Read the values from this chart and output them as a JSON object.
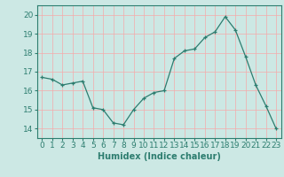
{
  "x": [
    0,
    1,
    2,
    3,
    4,
    5,
    6,
    7,
    8,
    9,
    10,
    11,
    12,
    13,
    14,
    15,
    16,
    17,
    18,
    19,
    20,
    21,
    22,
    23
  ],
  "y": [
    16.7,
    16.6,
    16.3,
    16.4,
    16.5,
    15.1,
    15.0,
    14.3,
    14.2,
    15.0,
    15.6,
    15.9,
    16.0,
    17.7,
    18.1,
    18.2,
    18.8,
    19.1,
    19.9,
    19.2,
    17.8,
    16.3,
    15.2,
    14.0
  ],
  "xlabel": "Humidex (Indice chaleur)",
  "ylim": [
    13.5,
    20.5
  ],
  "xlim": [
    -0.5,
    23.5
  ],
  "yticks": [
    14,
    15,
    16,
    17,
    18,
    19,
    20
  ],
  "xticks": [
    0,
    1,
    2,
    3,
    4,
    5,
    6,
    7,
    8,
    9,
    10,
    11,
    12,
    13,
    14,
    15,
    16,
    17,
    18,
    19,
    20,
    21,
    22,
    23
  ],
  "line_color": "#2d7d6f",
  "marker": "+",
  "bg_color": "#cce8e4",
  "grid_color": "#f5aaaa",
  "axis_color": "#2d7d6f",
  "tick_color": "#2d7d6f",
  "label_color": "#2d7d6f",
  "font_size": 6.5,
  "xlabel_fontsize": 7.0
}
